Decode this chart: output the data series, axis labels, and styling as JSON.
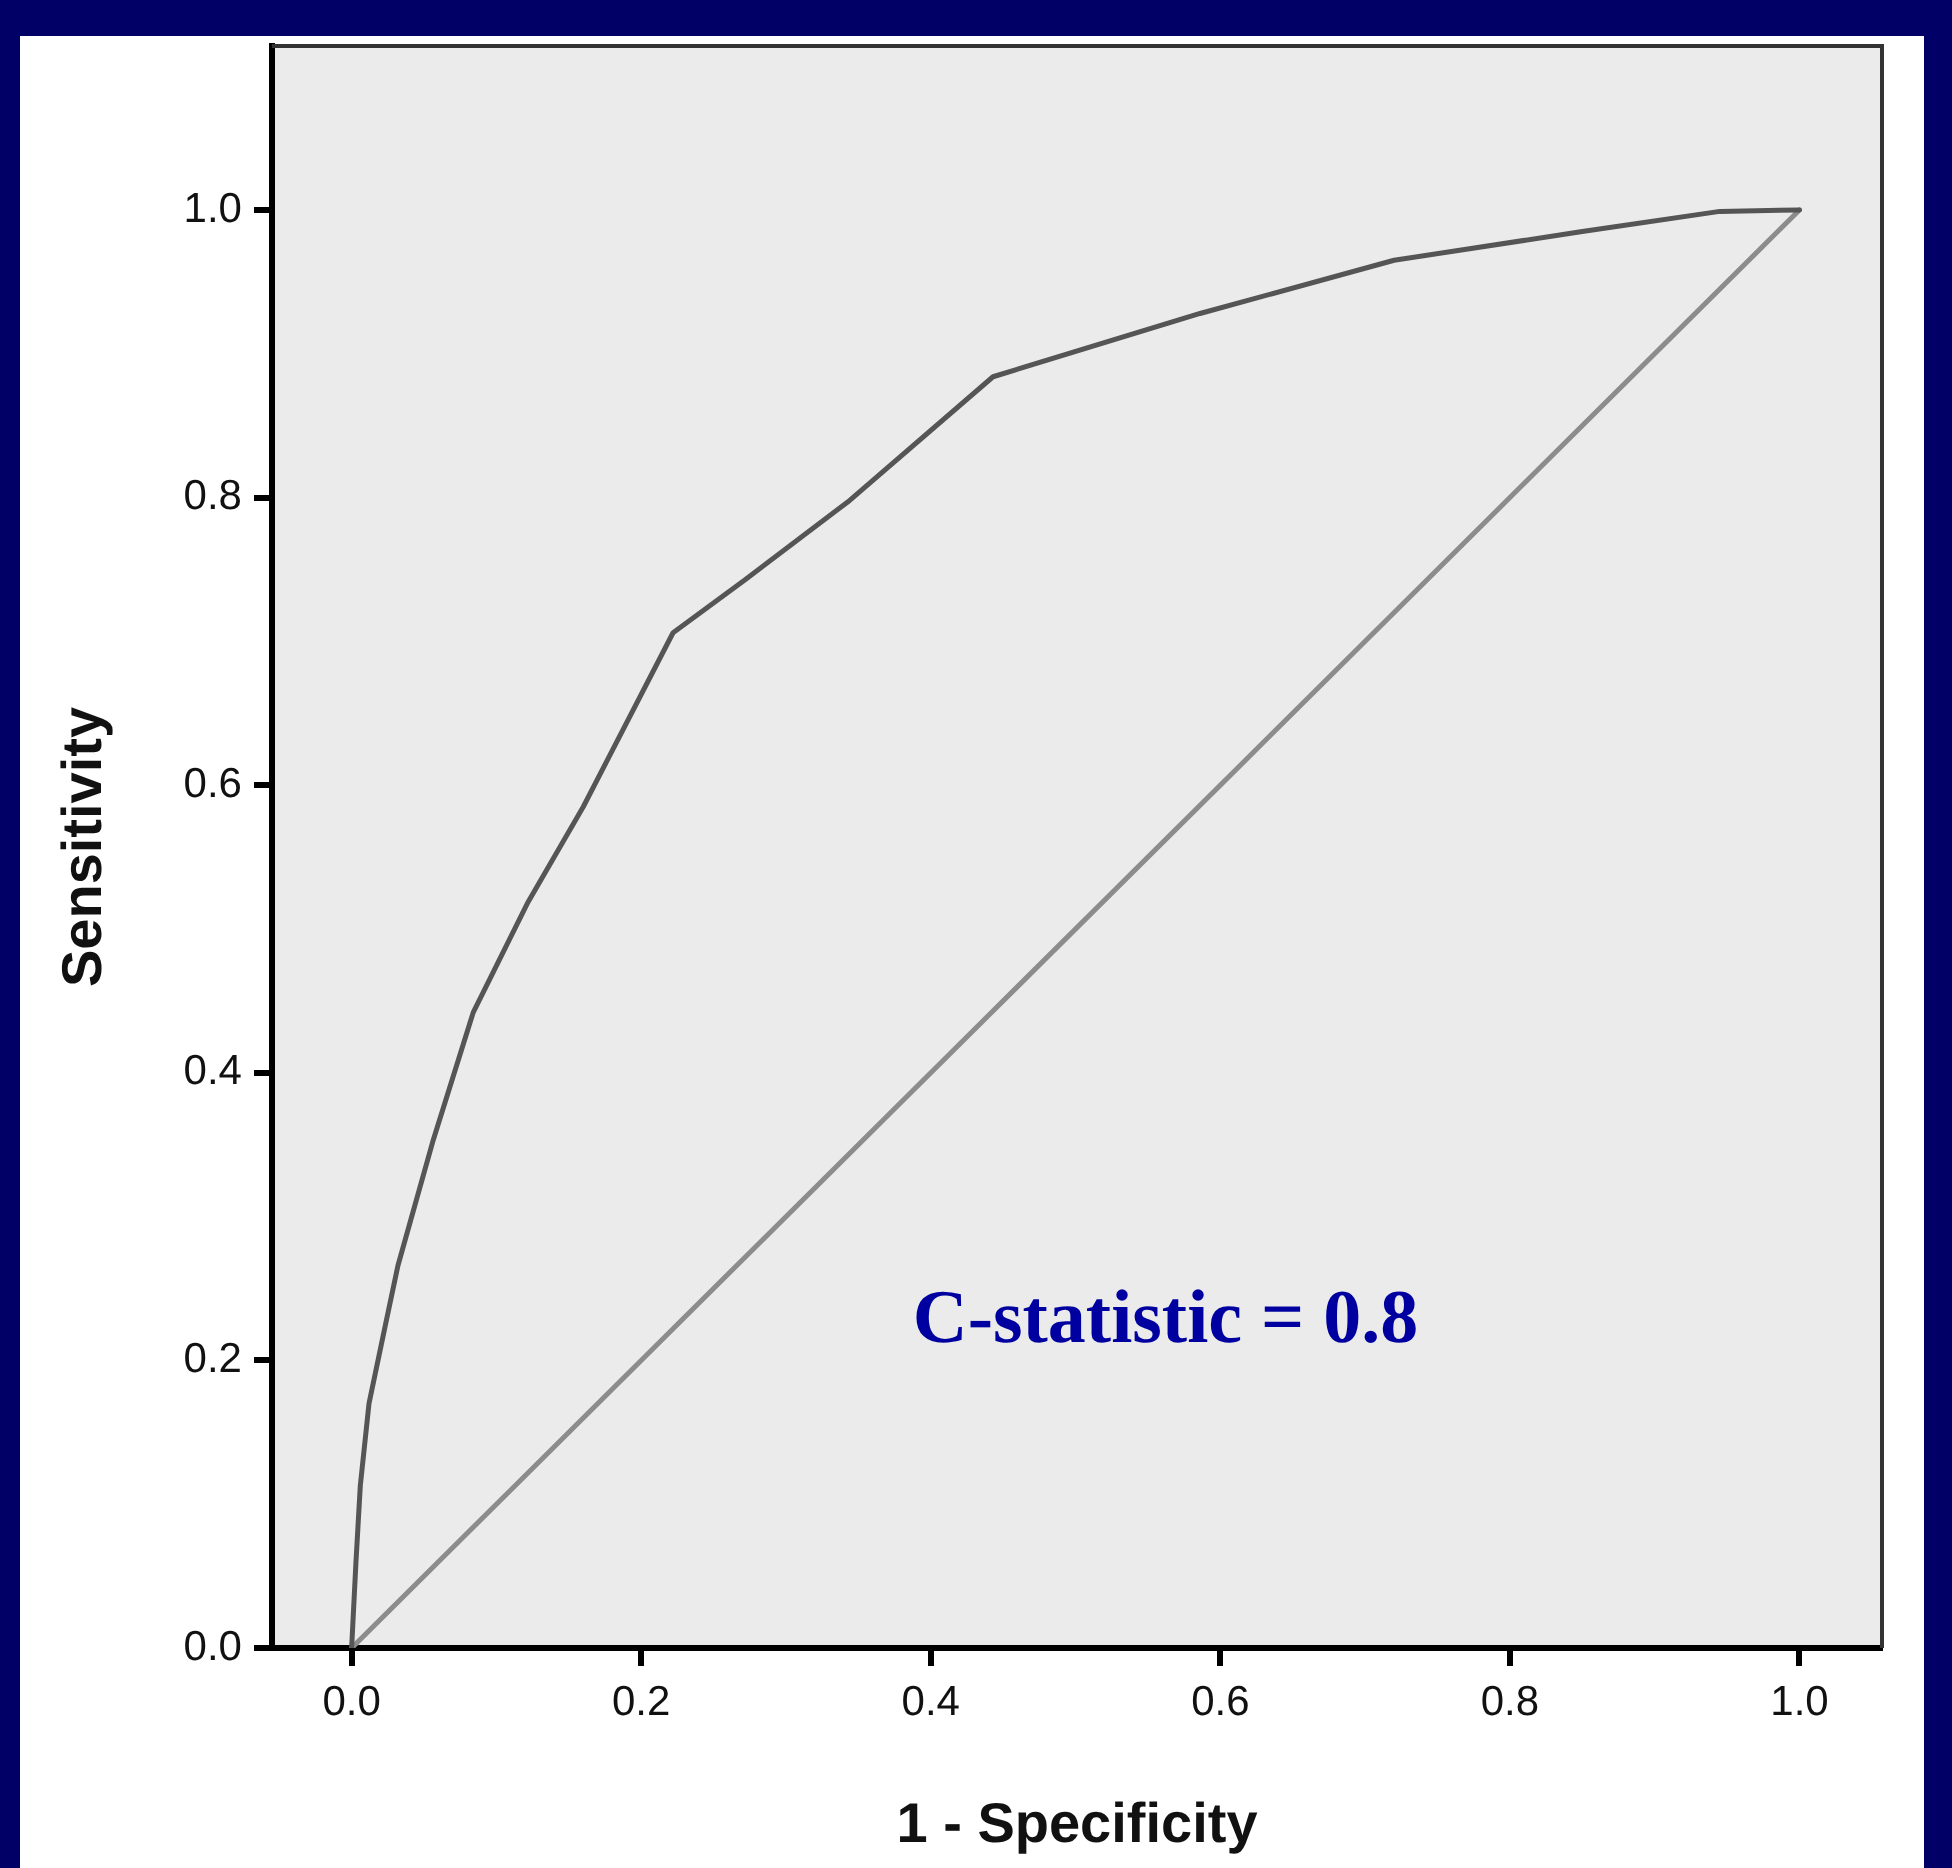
{
  "chart_data": {
    "type": "line",
    "xlabel": "1 - Specificity",
    "ylabel": "Sensitivity",
    "series": [
      {
        "color": "#555555",
        "x": [
          0,
          0.003,
          0.006,
          0.012,
          0.023,
          0.032,
          0.056,
          0.084,
          0.122,
          0.16,
          0.222,
          0.272,
          0.344,
          0.443,
          0.586,
          0.72,
          0.85,
          0.945,
          1
        ],
        "values": [
          0,
          0.06,
          0.113,
          0.17,
          0.223,
          0.266,
          0.352,
          0.442,
          0.519,
          0.585,
          0.706,
          0.743,
          0.798,
          0.884,
          0.928,
          0.965,
          0.985,
          0.999,
          1
        ]
      },
      {
        "color": "#8c8c8c",
        "x": [
          0,
          1
        ],
        "values": [
          0,
          1
        ]
      }
    ],
    "xlim": [
      -0.055,
      1.057
    ],
    "ylim": [
      0,
      1.114
    ],
    "xticks": [
      {
        "value": 0,
        "label": "0.0"
      },
      0.2,
      0.4,
      0.6,
      0.8,
      {
        "value": 1,
        "label": "1.0"
      }
    ],
    "yticks": [
      {
        "value": 0,
        "label": "0.0"
      },
      0.2,
      0.4,
      0.6,
      0.8,
      {
        "value": 1,
        "label": "1.0"
      }
    ],
    "grid": false,
    "marker": "none",
    "line_style": "solid",
    "annotations": [
      "C-statistic = 0.8"
    ]
  }
}
